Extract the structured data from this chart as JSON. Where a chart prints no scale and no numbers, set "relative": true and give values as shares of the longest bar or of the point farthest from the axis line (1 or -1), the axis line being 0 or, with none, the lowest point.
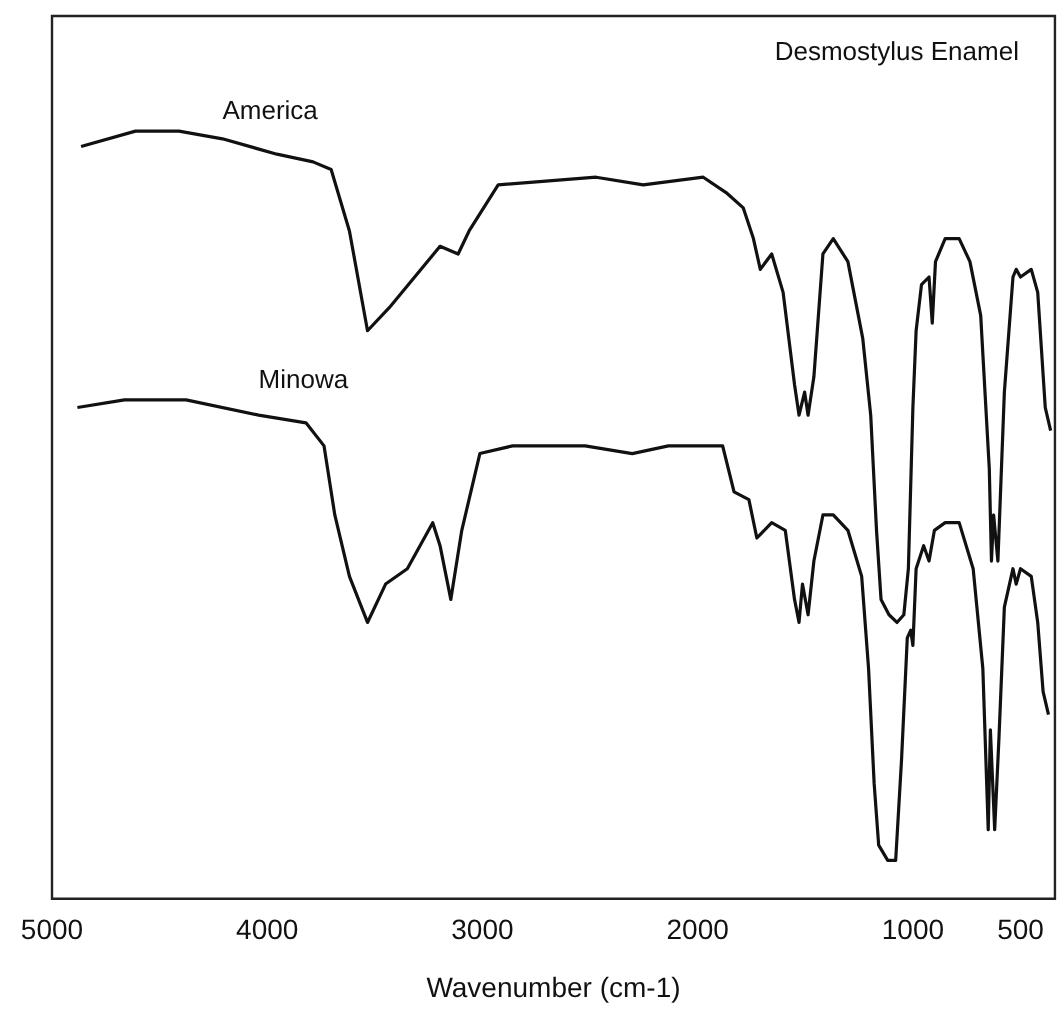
{
  "chart_data": {
    "type": "line",
    "title": "Desmostylus Enamel",
    "xlabel": "Wavenumber (cm-1)",
    "relative": true,
    "legend": false,
    "grid": false,
    "marker": "none",
    "line_style": "solid",
    "xlim": [
      5000,
      340
    ],
    "xticks": [
      5000,
      4000,
      3000,
      2000,
      1000,
      500
    ],
    "series": [
      {
        "name": "America",
        "color": "#111111",
        "x": [
          4865,
          4612,
          4410,
          4208,
          3955,
          3787,
          3703,
          3618,
          3534,
          3433,
          3197,
          3113,
          3062,
          2927,
          2472,
          2253,
          1974,
          1868,
          1788,
          1741,
          1709,
          1656,
          1603,
          1550,
          1529,
          1503,
          1487,
          1460,
          1418,
          1370,
          1302,
          1233,
          1196,
          1169,
          1148,
          1111,
          1074,
          1042,
          1021,
          1000,
          985,
          960,
          925,
          910,
          895,
          850,
          785,
          735,
          685,
          645,
          635,
          625,
          605,
          575,
          535,
          520,
          500,
          450,
          420,
          385,
          360
        ],
        "values": [
          0.98,
          1.0,
          1.0,
          0.99,
          0.97,
          0.96,
          0.95,
          0.87,
          0.74,
          0.77,
          0.85,
          0.84,
          0.87,
          0.93,
          0.94,
          0.93,
          0.94,
          0.92,
          0.9,
          0.86,
          0.82,
          0.84,
          0.79,
          0.67,
          0.63,
          0.66,
          0.63,
          0.68,
          0.84,
          0.86,
          0.83,
          0.73,
          0.63,
          0.48,
          0.39,
          0.37,
          0.36,
          0.37,
          0.43,
          0.64,
          0.74,
          0.8,
          0.81,
          0.75,
          0.83,
          0.86,
          0.86,
          0.83,
          0.76,
          0.56,
          0.44,
          0.5,
          0.44,
          0.66,
          0.81,
          0.82,
          0.81,
          0.82,
          0.79,
          0.64,
          0.61
        ]
      },
      {
        "name": "Minowa",
        "color": "#111111",
        "x": [
          4882,
          4663,
          4377,
          4040,
          3820,
          3736,
          3686,
          3618,
          3534,
          3450,
          3349,
          3231,
          3197,
          3147,
          3096,
          3012,
          2860,
          2523,
          2304,
          2136,
          1884,
          1831,
          1762,
          1725,
          1656,
          1593,
          1550,
          1529,
          1513,
          1487,
          1460,
          1418,
          1370,
          1302,
          1238,
          1206,
          1180,
          1159,
          1117,
          1080,
          1053,
          1026,
          1010,
          1000,
          985,
          950,
          925,
          900,
          850,
          785,
          720,
          675,
          650,
          640,
          620,
          600,
          575,
          535,
          520,
          500,
          450,
          420,
          395,
          370
        ],
        "values": [
          0.64,
          0.65,
          0.65,
          0.63,
          0.62,
          0.59,
          0.5,
          0.42,
          0.36,
          0.41,
          0.43,
          0.49,
          0.46,
          0.39,
          0.48,
          0.58,
          0.59,
          0.59,
          0.58,
          0.59,
          0.59,
          0.53,
          0.52,
          0.47,
          0.49,
          0.48,
          0.39,
          0.36,
          0.41,
          0.37,
          0.44,
          0.5,
          0.5,
          0.48,
          0.42,
          0.3,
          0.15,
          0.07,
          0.05,
          0.05,
          0.18,
          0.34,
          0.35,
          0.33,
          0.43,
          0.46,
          0.44,
          0.48,
          0.49,
          0.49,
          0.43,
          0.3,
          0.09,
          0.22,
          0.09,
          0.21,
          0.38,
          0.43,
          0.41,
          0.43,
          0.42,
          0.36,
          0.27,
          0.24
        ]
      }
    ]
  }
}
